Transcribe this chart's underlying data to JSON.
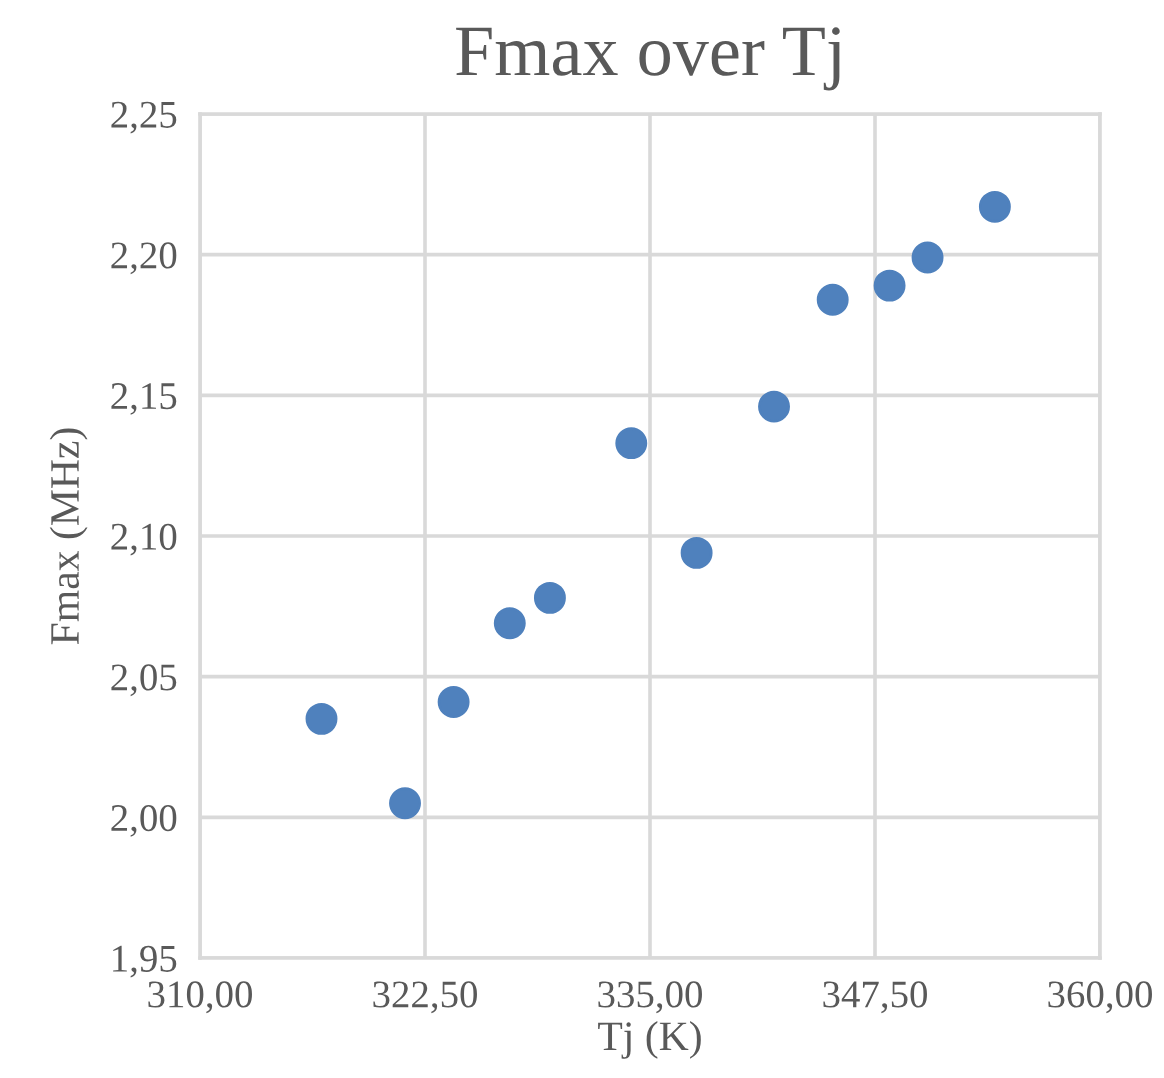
{
  "chart_data": {
    "type": "scatter",
    "title": "Fmax over Tj",
    "xlabel": "Tj (K)",
    "ylabel": "Fmax (MHz)",
    "x": [
      316.75,
      321.39,
      324.09,
      327.21,
      329.44,
      333.96,
      337.59,
      341.89,
      345.15,
      348.31,
      350.42,
      354.16
    ],
    "series": [
      {
        "color": "#4f81bd",
        "values": [
          2.035,
          2.005,
          2.041,
          2.069,
          2.078,
          2.133,
          2.094,
          2.146,
          2.184,
          2.189,
          2.199,
          2.217
        ]
      }
    ],
    "xlim": [
      310,
      360
    ],
    "xticks": [
      {
        "value": 310,
        "label": "310,00"
      },
      {
        "value": 322.5,
        "label": "322,50"
      },
      {
        "value": 335,
        "label": "335,00"
      },
      {
        "value": 347.5,
        "label": "347,50"
      },
      {
        "value": 360,
        "label": "360,00"
      }
    ],
    "ylim": [
      1.95,
      2.25
    ],
    "yticks": [
      {
        "value": 1.95,
        "label": "1,95"
      },
      {
        "value": 2.0,
        "label": "2,00"
      },
      {
        "value": 2.05,
        "label": "2,05"
      },
      {
        "value": 2.1,
        "label": "2,10"
      },
      {
        "value": 2.15,
        "label": "2,15"
      },
      {
        "value": 2.2,
        "label": "2,20"
      },
      {
        "value": 2.25,
        "label": "2,25"
      }
    ],
    "grid": true,
    "marker": "circle",
    "legend": false
  }
}
